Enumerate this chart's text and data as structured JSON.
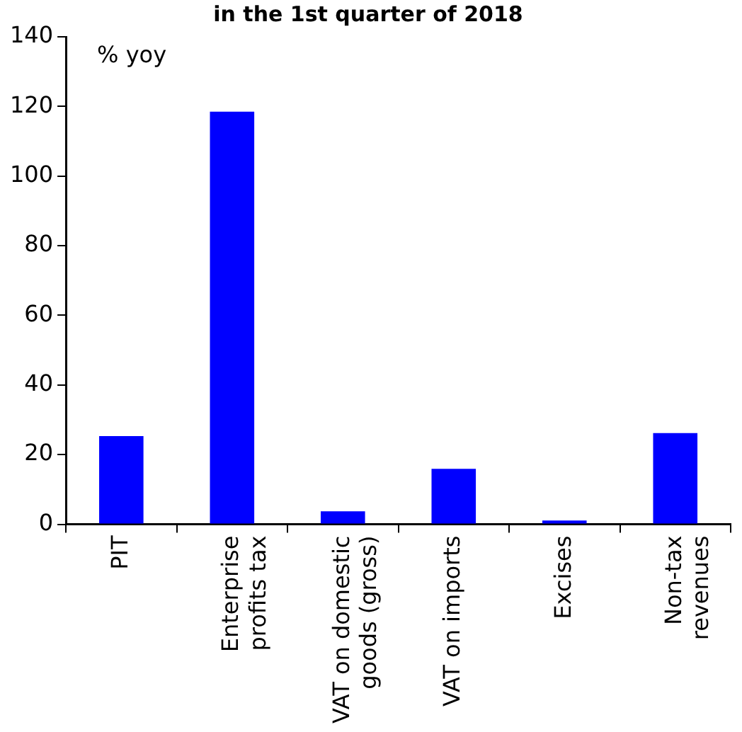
{
  "chart_data": {
    "type": "bar",
    "title": "in the 1st quarter of 2018",
    "annotations": [
      "% yoy"
    ],
    "categories": [
      "PIT",
      "Enterprise profits tax",
      "VAT on domestic goods (gross)",
      "VAT on imports",
      "Excises",
      "Non-tax revenues"
    ],
    "values": [
      25.3,
      118.5,
      3.7,
      15.9,
      1.1,
      26.2
    ],
    "color": "#0000ff",
    "ylim": [
      0,
      140
    ],
    "yticks": [
      0,
      20,
      40,
      60,
      80,
      100,
      120,
      140
    ],
    "grid": false,
    "legend": false
  }
}
